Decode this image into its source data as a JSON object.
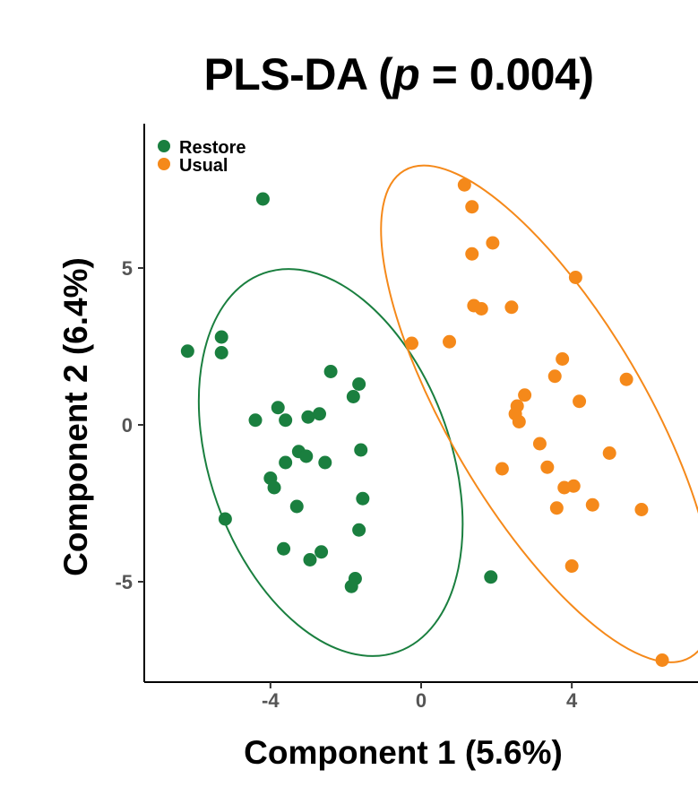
{
  "chart_data": {
    "type": "scatter",
    "title_prefix": "PLS-DA (",
    "title_p": "p",
    "title_suffix": " = 0.004)",
    "xlabel": "Component 1 (5.6%)",
    "ylabel": "Component 2  (6.4%)",
    "xlim": [
      -7.35,
      7.35
    ],
    "ylim": [
      -8.2,
      9.6
    ],
    "xticks": [
      -4,
      0,
      4
    ],
    "xtick_labels": [
      "-4",
      "0",
      "4"
    ],
    "yticks": [
      5,
      0,
      -5
    ],
    "ytick_labels": [
      "5",
      "0",
      "-5"
    ],
    "legend_position": "top-left",
    "series": [
      {
        "name": "Restore",
        "color": "#1a7f3f",
        "points": [
          [
            -4.2,
            7.2
          ],
          [
            -6.2,
            2.35
          ],
          [
            -5.3,
            2.8
          ],
          [
            -5.3,
            2.3
          ],
          [
            -5.2,
            -3.0
          ],
          [
            -4.4,
            0.15
          ],
          [
            -3.8,
            0.55
          ],
          [
            -3.6,
            0.15
          ],
          [
            -3.0,
            0.25
          ],
          [
            -2.7,
            0.35
          ],
          [
            -2.4,
            1.7
          ],
          [
            -1.65,
            1.3
          ],
          [
            -1.8,
            0.9
          ],
          [
            -3.6,
            -1.2
          ],
          [
            -3.25,
            -0.85
          ],
          [
            -3.05,
            -1.0
          ],
          [
            -2.55,
            -1.2
          ],
          [
            -1.6,
            -0.8
          ],
          [
            -4.0,
            -1.7
          ],
          [
            -3.9,
            -2.0
          ],
          [
            -3.3,
            -2.6
          ],
          [
            -1.55,
            -2.35
          ],
          [
            -3.65,
            -3.95
          ],
          [
            -2.65,
            -4.05
          ],
          [
            -2.95,
            -4.3
          ],
          [
            -1.65,
            -3.35
          ],
          [
            -1.75,
            -4.9
          ],
          [
            -1.85,
            -5.15
          ],
          [
            1.85,
            -4.85
          ]
        ]
      },
      {
        "name": "Usual",
        "color": "#f5891a",
        "points": [
          [
            1.15,
            7.65
          ],
          [
            1.35,
            6.95
          ],
          [
            1.9,
            5.8
          ],
          [
            1.35,
            5.45
          ],
          [
            4.1,
            4.7
          ],
          [
            1.4,
            3.8
          ],
          [
            1.6,
            3.7
          ],
          [
            2.4,
            3.75
          ],
          [
            -0.25,
            2.6
          ],
          [
            0.75,
            2.65
          ],
          [
            3.75,
            2.1
          ],
          [
            3.55,
            1.55
          ],
          [
            5.45,
            1.45
          ],
          [
            2.75,
            0.95
          ],
          [
            4.2,
            0.75
          ],
          [
            2.55,
            0.6
          ],
          [
            2.5,
            0.35
          ],
          [
            2.6,
            0.1
          ],
          [
            3.15,
            -0.6
          ],
          [
            5.0,
            -0.9
          ],
          [
            2.15,
            -1.4
          ],
          [
            3.35,
            -1.35
          ],
          [
            3.8,
            -2.0
          ],
          [
            4.05,
            -1.95
          ],
          [
            3.6,
            -2.65
          ],
          [
            4.55,
            -2.55
          ],
          [
            5.85,
            -2.7
          ],
          [
            4.0,
            -4.5
          ],
          [
            6.4,
            -7.5
          ]
        ]
      }
    ],
    "ellipses": [
      {
        "group": "Restore",
        "center": [
          -2.4,
          -1.2
        ],
        "semi_axes": [
          3.2,
          6.4
        ],
        "angle_deg": 19.5
      },
      {
        "group": "Usual",
        "center": [
          3.35,
          0.35
        ],
        "semi_axes": [
          2.6,
          9.0
        ],
        "angle_deg": 30.5
      }
    ]
  }
}
